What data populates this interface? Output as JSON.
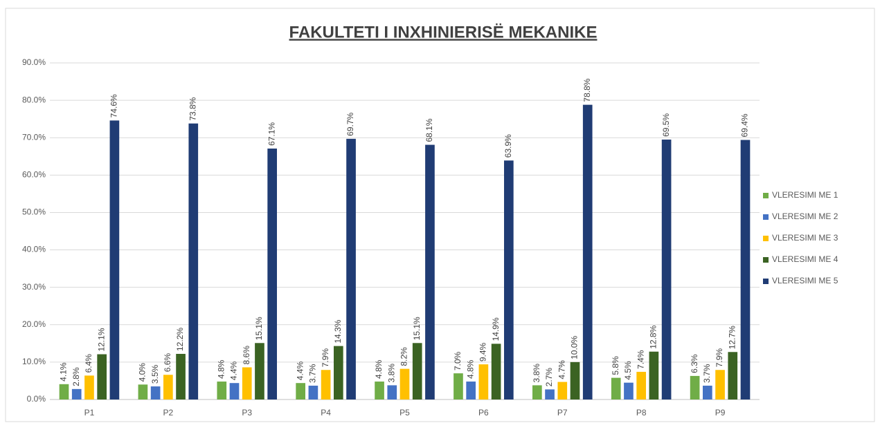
{
  "chart_data": {
    "type": "bar",
    "title": "FAKULTETI I INXHINIERISË MEKANIKE",
    "categories": [
      "P1",
      "P2",
      "P3",
      "P4",
      "P5",
      "P6",
      "P7",
      "P8",
      "P9"
    ],
    "series": [
      {
        "name": "VLERESIMI ME 1",
        "color": "#70ad47",
        "values": [
          4.1,
          4.0,
          4.8,
          4.4,
          4.8,
          7.0,
          3.8,
          5.8,
          6.3
        ],
        "value_labels": [
          "4.1%",
          "4.0%",
          "4.8%",
          "4.4%",
          "4.8%",
          "7.0%",
          "3.8%",
          "5.8%",
          "6.3%"
        ]
      },
      {
        "name": "VLERESIMI ME 2",
        "color": "#4472c4",
        "values": [
          2.8,
          3.5,
          4.4,
          3.7,
          3.8,
          4.8,
          2.7,
          4.5,
          3.7
        ],
        "value_labels": [
          "2.8%",
          "3.5%",
          "4.4%",
          "3.7%",
          "3.8%",
          "4.8%",
          "2.7%",
          "4.5%",
          "3.7%"
        ]
      },
      {
        "name": "VLERESIMI ME 3",
        "color": "#ffc000",
        "values": [
          6.4,
          6.6,
          8.6,
          7.9,
          8.2,
          9.4,
          4.7,
          7.4,
          7.9
        ],
        "value_labels": [
          "6.4%",
          "6.6%",
          "8.6%",
          "7.9%",
          "8.2%",
          "9.4%",
          "4.7%",
          "7.4%",
          "7.9%"
        ]
      },
      {
        "name": "VLERESIMI ME 4",
        "color": "#3b6323",
        "values": [
          12.1,
          12.2,
          15.1,
          14.3,
          15.1,
          14.9,
          10.0,
          12.8,
          12.7
        ],
        "value_labels": [
          "12.1%",
          "12.2%",
          "15.1%",
          "14.3%",
          "15.1%",
          "14.9%",
          "10.0%",
          "12.8%",
          "12.7%"
        ]
      },
      {
        "name": "VLERESIMI ME 5",
        "color": "#203c74",
        "values": [
          74.6,
          73.8,
          67.1,
          69.7,
          68.1,
          63.9,
          78.8,
          69.5,
          69.4
        ],
        "value_labels": [
          "74.6%",
          "73.8%",
          "67.1%",
          "69.7%",
          "68.1%",
          "63.9%",
          "78.8%",
          "69.5%",
          "69.4%"
        ]
      }
    ],
    "ylim": [
      0,
      90
    ],
    "yticks": [
      {
        "value": 0,
        "label": "0.0%"
      },
      {
        "value": 10,
        "label": "10.0%"
      },
      {
        "value": 20,
        "label": "20.0%"
      },
      {
        "value": 30,
        "label": "30.0%"
      },
      {
        "value": 40,
        "label": "40.0%"
      },
      {
        "value": 50,
        "label": "50.0%"
      },
      {
        "value": 60,
        "label": "60.0%"
      },
      {
        "value": 70,
        "label": "70.0%"
      },
      {
        "value": 80,
        "label": "80.0%"
      },
      {
        "value": 90,
        "label": "90.0%"
      }
    ],
    "grid": true,
    "legend": "right"
  }
}
